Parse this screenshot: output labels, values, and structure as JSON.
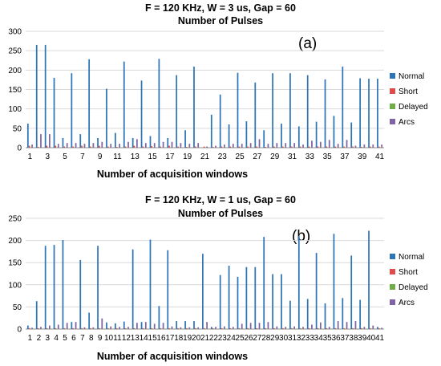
{
  "chart_data": [
    {
      "type": "bar",
      "title": "F = 120 KHz, W = 3 us, Gap = 60",
      "subtitle": "Number of Pulses",
      "panel_label": "(a)",
      "xlabel": "Number of acquisition windows",
      "ylabel": "",
      "ylim": [
        0,
        300
      ],
      "yticks": [
        0,
        50,
        100,
        150,
        200,
        250,
        300
      ],
      "x_tick_labels": [
        "1",
        "3",
        "5",
        "7",
        "9",
        "11",
        "13",
        "15",
        "17",
        "19",
        "21",
        "23",
        "25",
        "27",
        "29",
        "31",
        "33",
        "35",
        "37",
        "39",
        "41"
      ],
      "categories": [
        "1",
        "2",
        "3",
        "4",
        "5",
        "6",
        "7",
        "8",
        "9",
        "10",
        "11",
        "12",
        "13",
        "14",
        "15",
        "16",
        "17",
        "18",
        "19",
        "20",
        "21",
        "22",
        "23",
        "24",
        "25",
        "26",
        "27",
        "28",
        "29",
        "30",
        "31",
        "32",
        "33",
        "34",
        "35",
        "36",
        "37",
        "38",
        "39",
        "40",
        "41"
      ],
      "grid": true,
      "legend_position": "right",
      "series": [
        {
          "name": "Normal",
          "color": "#2e75b6",
          "values": [
            62,
            265,
            265,
            180,
            25,
            192,
            35,
            228,
            25,
            152,
            38,
            222,
            25,
            173,
            30,
            229,
            25,
            187,
            45,
            209,
            0,
            85,
            137,
            60,
            193,
            68,
            168,
            45,
            192,
            62,
            192,
            55,
            187,
            67,
            176,
            82,
            209,
            65,
            179,
            178,
            178
          ]
        },
        {
          "name": "Short",
          "color": "#e04b4b",
          "values": [
            5,
            2,
            5,
            5,
            3,
            3,
            5,
            3,
            5,
            3,
            2,
            3,
            5,
            3,
            4,
            3,
            5,
            3,
            2,
            3,
            3,
            2,
            3,
            3,
            3,
            3,
            3,
            2,
            3,
            3,
            3,
            3,
            3,
            3,
            3,
            3,
            3,
            3,
            2,
            3,
            3
          ]
        },
        {
          "name": "Delayed",
          "color": "#70ad47",
          "values": [
            1,
            1,
            1,
            1,
            1,
            1,
            1,
            1,
            1,
            1,
            1,
            1,
            1,
            1,
            1,
            1,
            1,
            1,
            1,
            1,
            1,
            1,
            1,
            1,
            1,
            1,
            1,
            1,
            1,
            1,
            1,
            1,
            1,
            1,
            1,
            1,
            1,
            1,
            1,
            1,
            1
          ]
        },
        {
          "name": "Arcs",
          "color": "#8064a2",
          "values": [
            8,
            35,
            35,
            10,
            12,
            12,
            10,
            12,
            15,
            10,
            10,
            15,
            22,
            12,
            12,
            15,
            15,
            12,
            10,
            12,
            3,
            5,
            8,
            10,
            10,
            12,
            22,
            10,
            12,
            12,
            12,
            8,
            18,
            15,
            20,
            10,
            20,
            5,
            8,
            8,
            8
          ]
        }
      ]
    },
    {
      "type": "bar",
      "title": "F = 120 KHz, W = 1 us, Gap = 60",
      "subtitle": "Number of Pulses",
      "panel_label": "(b)",
      "xlabel": "Number of acquisition windows",
      "ylabel": "",
      "ylim": [
        0,
        250
      ],
      "yticks": [
        0,
        50,
        100,
        150,
        200,
        250
      ],
      "x_tick_labels": [
        "1",
        "2",
        "3",
        "4",
        "5",
        "6",
        "7",
        "8",
        "9",
        "10",
        "11",
        "12",
        "13",
        "14",
        "15",
        "16",
        "17",
        "18",
        "19",
        "20",
        "21",
        "22",
        "23",
        "24",
        "25",
        "26",
        "27",
        "28",
        "29",
        "30",
        "31",
        "32",
        "33",
        "34",
        "35",
        "36",
        "37",
        "38",
        "39",
        "40",
        "41"
      ],
      "categories": [
        "1",
        "2",
        "3",
        "4",
        "5",
        "6",
        "7",
        "8",
        "9",
        "10",
        "11",
        "12",
        "13",
        "14",
        "15",
        "16",
        "17",
        "18",
        "19",
        "20",
        "21",
        "22",
        "23",
        "24",
        "25",
        "26",
        "27",
        "28",
        "29",
        "30",
        "31",
        "32",
        "33",
        "34",
        "35",
        "36",
        "37",
        "38",
        "39",
        "40",
        "41"
      ],
      "grid": true,
      "legend_position": "right",
      "series": [
        {
          "name": "Normal",
          "color": "#2e75b6",
          "values": [
            8,
            63,
            188,
            190,
            201,
            16,
            156,
            37,
            188,
            15,
            13,
            17,
            180,
            16,
            202,
            52,
            178,
            18,
            18,
            18,
            170,
            5,
            122,
            143,
            118,
            140,
            140,
            208,
            124,
            124,
            64,
            210,
            68,
            172,
            58,
            215,
            70,
            166,
            66,
            222,
            5
          ]
        },
        {
          "name": "Short",
          "color": "#e04b4b",
          "values": [
            2,
            2,
            2,
            2,
            2,
            2,
            2,
            2,
            2,
            2,
            2,
            2,
            2,
            2,
            2,
            2,
            2,
            2,
            2,
            2,
            2,
            2,
            2,
            2,
            2,
            2,
            2,
            2,
            2,
            2,
            2,
            2,
            2,
            2,
            2,
            2,
            2,
            2,
            2,
            2,
            2
          ]
        },
        {
          "name": "Delayed",
          "color": "#70ad47",
          "values": [
            1,
            1,
            1,
            1,
            1,
            1,
            1,
            1,
            1,
            1,
            1,
            1,
            1,
            1,
            1,
            1,
            1,
            1,
            1,
            1,
            1,
            1,
            1,
            1,
            1,
            1,
            1,
            1,
            1,
            1,
            1,
            1,
            1,
            1,
            1,
            1,
            1,
            1,
            1,
            1,
            1
          ]
        },
        {
          "name": "Arcs",
          "color": "#8064a2",
          "values": [
            3,
            5,
            8,
            10,
            14,
            16,
            4,
            4,
            24,
            6,
            5,
            5,
            14,
            16,
            12,
            14,
            6,
            4,
            4,
            4,
            16,
            5,
            6,
            5,
            12,
            14,
            14,
            16,
            6,
            5,
            6,
            5,
            10,
            15,
            5,
            18,
            16,
            18,
            5,
            8,
            3
          ]
        }
      ]
    }
  ]
}
